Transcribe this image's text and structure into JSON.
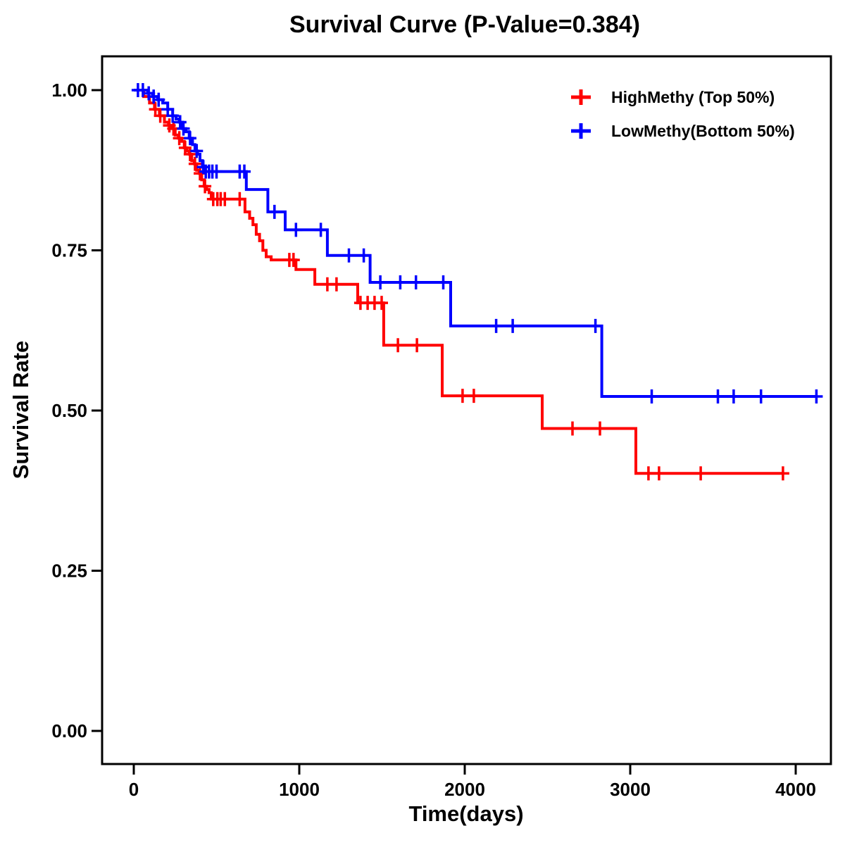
{
  "chart_data": {
    "type": "line",
    "subtype": "kaplan-meier-step-survival",
    "title": "Survival Curve (P-Value=0.384)",
    "p_value": "0.384",
    "xlabel": "Time(days)",
    "ylabel": "Survival Rate",
    "xlim": [
      0,
      4200
    ],
    "ylim": [
      0,
      1.0
    ],
    "x_ticks": [
      0,
      1000,
      2000,
      3000,
      4000
    ],
    "y_ticks": [
      0.0,
      0.25,
      0.5,
      0.75,
      1.0
    ],
    "y_tick_labels": [
      "0.00",
      "0.25",
      "0.50",
      "0.75",
      "1.00"
    ],
    "grid": "off",
    "legend_position": "top-right-inside",
    "series": [
      {
        "id": "highmethy",
        "name": "HighMethy (Top 50%)",
        "color": "#FF0000",
        "steps": [
          [
            0,
            1.0
          ],
          [
            60,
            0.99
          ],
          [
            95,
            0.98
          ],
          [
            125,
            0.97
          ],
          [
            155,
            0.96
          ],
          [
            185,
            0.95
          ],
          [
            210,
            0.945
          ],
          [
            230,
            0.94
          ],
          [
            250,
            0.93
          ],
          [
            270,
            0.925
          ],
          [
            290,
            0.92
          ],
          [
            305,
            0.91
          ],
          [
            320,
            0.905
          ],
          [
            335,
            0.9
          ],
          [
            350,
            0.89
          ],
          [
            365,
            0.885
          ],
          [
            380,
            0.875
          ],
          [
            395,
            0.87
          ],
          [
            410,
            0.86
          ],
          [
            425,
            0.85
          ],
          [
            440,
            0.845
          ],
          [
            455,
            0.84
          ],
          [
            468,
            0.83
          ],
          [
            672,
            0.81
          ],
          [
            700,
            0.8
          ],
          [
            720,
            0.79
          ],
          [
            740,
            0.775
          ],
          [
            760,
            0.765
          ],
          [
            780,
            0.75
          ],
          [
            800,
            0.74
          ],
          [
            830,
            0.735
          ],
          [
            980,
            0.72
          ],
          [
            1094,
            0.697
          ],
          [
            1353,
            0.668
          ],
          [
            1510,
            0.602
          ],
          [
            1864,
            0.523
          ],
          [
            2468,
            0.472
          ],
          [
            3034,
            0.402
          ],
          [
            3927,
            0.402
          ]
        ],
        "censors": [
          [
            130,
            0.97
          ],
          [
            160,
            0.96
          ],
          [
            215,
            0.945
          ],
          [
            240,
            0.94
          ],
          [
            275,
            0.925
          ],
          [
            310,
            0.91
          ],
          [
            340,
            0.9
          ],
          [
            370,
            0.885
          ],
          [
            400,
            0.87
          ],
          [
            430,
            0.85
          ],
          [
            480,
            0.83
          ],
          [
            505,
            0.83
          ],
          [
            525,
            0.83
          ],
          [
            550,
            0.83
          ],
          [
            640,
            0.83
          ],
          [
            940,
            0.735
          ],
          [
            965,
            0.735
          ],
          [
            1170,
            0.697
          ],
          [
            1225,
            0.697
          ],
          [
            1370,
            0.668
          ],
          [
            1413,
            0.668
          ],
          [
            1455,
            0.668
          ],
          [
            1498,
            0.668
          ],
          [
            1596,
            0.602
          ],
          [
            1711,
            0.602
          ],
          [
            1987,
            0.523
          ],
          [
            2055,
            0.523
          ],
          [
            2651,
            0.472
          ],
          [
            2817,
            0.472
          ],
          [
            3110,
            0.402
          ],
          [
            3174,
            0.402
          ],
          [
            3426,
            0.402
          ],
          [
            3923,
            0.402
          ]
        ]
      },
      {
        "id": "lowmethy",
        "name": "LowMethy(Bottom 50%)",
        "color": "#0000FF",
        "steps": [
          [
            0,
            1.0
          ],
          [
            85,
            0.995
          ],
          [
            115,
            0.99
          ],
          [
            145,
            0.985
          ],
          [
            175,
            0.98
          ],
          [
            205,
            0.97
          ],
          [
            235,
            0.96
          ],
          [
            255,
            0.955
          ],
          [
            275,
            0.95
          ],
          [
            295,
            0.94
          ],
          [
            315,
            0.935
          ],
          [
            335,
            0.925
          ],
          [
            355,
            0.915
          ],
          [
            370,
            0.905
          ],
          [
            385,
            0.9
          ],
          [
            400,
            0.89
          ],
          [
            415,
            0.88
          ],
          [
            428,
            0.873
          ],
          [
            680,
            0.845
          ],
          [
            810,
            0.81
          ],
          [
            915,
            0.782
          ],
          [
            1170,
            0.742
          ],
          [
            1428,
            0.7
          ],
          [
            1915,
            0.632
          ],
          [
            2828,
            0.522
          ],
          [
            4128,
            0.522
          ]
        ],
        "censors": [
          [
            25,
            1.0
          ],
          [
            55,
            1.0
          ],
          [
            90,
            0.995
          ],
          [
            120,
            0.99
          ],
          [
            150,
            0.985
          ],
          [
            205,
            0.97
          ],
          [
            235,
            0.96
          ],
          [
            280,
            0.95
          ],
          [
            300,
            0.94
          ],
          [
            340,
            0.925
          ],
          [
            380,
            0.905
          ],
          [
            420,
            0.88
          ],
          [
            435,
            0.873
          ],
          [
            455,
            0.873
          ],
          [
            475,
            0.873
          ],
          [
            500,
            0.873
          ],
          [
            640,
            0.873
          ],
          [
            668,
            0.873
          ],
          [
            850,
            0.81
          ],
          [
            980,
            0.782
          ],
          [
            1130,
            0.782
          ],
          [
            1300,
            0.742
          ],
          [
            1390,
            0.742
          ],
          [
            1490,
            0.7
          ],
          [
            1610,
            0.7
          ],
          [
            1705,
            0.7
          ],
          [
            1870,
            0.7
          ],
          [
            2190,
            0.632
          ],
          [
            2290,
            0.632
          ],
          [
            2790,
            0.632
          ],
          [
            3130,
            0.522
          ],
          [
            3530,
            0.522
          ],
          [
            3625,
            0.522
          ],
          [
            3790,
            0.522
          ],
          [
            4125,
            0.522
          ]
        ]
      }
    ]
  }
}
